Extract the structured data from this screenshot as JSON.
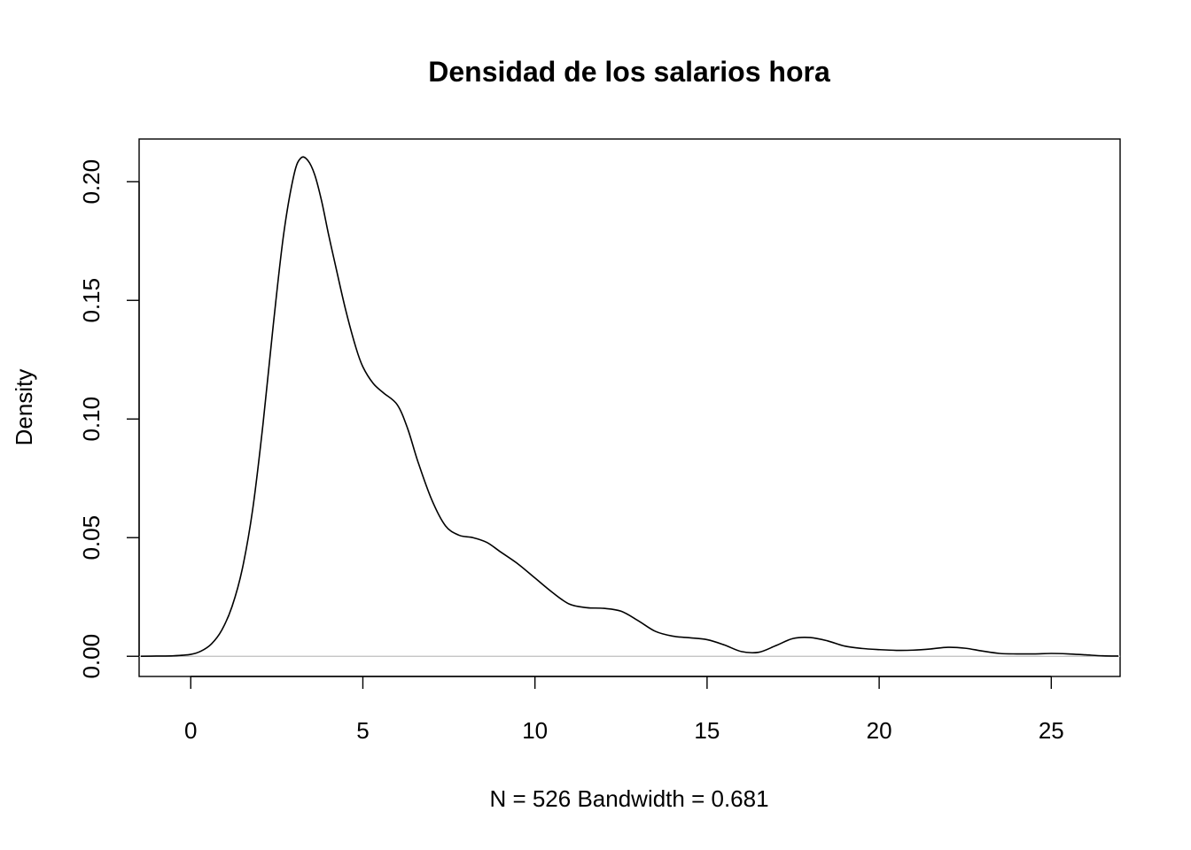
{
  "chart_data": {
    "type": "line",
    "title": "Densidad de los salarios hora",
    "xlabel": "N = 526   Bandwidth = 0.681",
    "ylabel": "Density",
    "xlim": [
      -1.5,
      27.0
    ],
    "ylim": [
      -0.0085,
      0.218
    ],
    "x_ticks": [
      0,
      5,
      10,
      15,
      20,
      25
    ],
    "x_tick_labels": [
      "0",
      "5",
      "10",
      "15",
      "20",
      "25"
    ],
    "y_ticks": [
      0.0,
      0.05,
      0.1,
      0.15,
      0.2
    ],
    "y_tick_labels": [
      "0.00",
      "0.05",
      "0.10",
      "0.15",
      "0.20"
    ],
    "baseline": 0,
    "grid": false,
    "legend": "none",
    "colors": {
      "line": "#000000",
      "baseline": "#bebebe",
      "frame": "#000000"
    },
    "series": [
      {
        "x": [
          -1.45,
          -1.0,
          -0.5,
          0.0,
          0.3,
          0.6,
          0.9,
          1.2,
          1.5,
          1.8,
          2.1,
          2.4,
          2.7,
          3.0,
          3.2,
          3.4,
          3.6,
          3.8,
          4.0,
          4.2,
          4.5,
          4.8,
          5.0,
          5.3,
          5.6,
          6.0,
          6.3,
          6.6,
          7.0,
          7.4,
          7.8,
          8.2,
          8.6,
          9.0,
          9.5,
          10.0,
          10.5,
          11.0,
          11.5,
          12.0,
          12.5,
          13.0,
          13.5,
          14.0,
          14.5,
          15.0,
          15.5,
          16.0,
          16.5,
          17.0,
          17.5,
          18.0,
          18.5,
          19.0,
          19.5,
          20.0,
          20.5,
          21.0,
          21.5,
          22.0,
          22.5,
          23.0,
          23.5,
          24.0,
          24.5,
          25.0,
          25.5,
          26.0,
          26.5,
          26.95
        ],
        "y": [
          0.0,
          0.0001,
          0.0002,
          0.0008,
          0.0022,
          0.0052,
          0.011,
          0.021,
          0.037,
          0.062,
          0.098,
          0.14,
          0.178,
          0.203,
          0.21,
          0.209,
          0.203,
          0.192,
          0.178,
          0.165,
          0.146,
          0.13,
          0.122,
          0.115,
          0.111,
          0.106,
          0.096,
          0.082,
          0.066,
          0.055,
          0.051,
          0.05,
          0.048,
          0.044,
          0.039,
          0.033,
          0.027,
          0.022,
          0.0205,
          0.0202,
          0.019,
          0.015,
          0.0105,
          0.0085,
          0.0078,
          0.007,
          0.0048,
          0.002,
          0.0017,
          0.0045,
          0.0075,
          0.0079,
          0.0065,
          0.0043,
          0.0033,
          0.0028,
          0.0025,
          0.0026,
          0.0031,
          0.0038,
          0.0034,
          0.0022,
          0.0012,
          0.001,
          0.001,
          0.0012,
          0.001,
          0.0006,
          0.0002,
          0.0001
        ]
      }
    ]
  }
}
